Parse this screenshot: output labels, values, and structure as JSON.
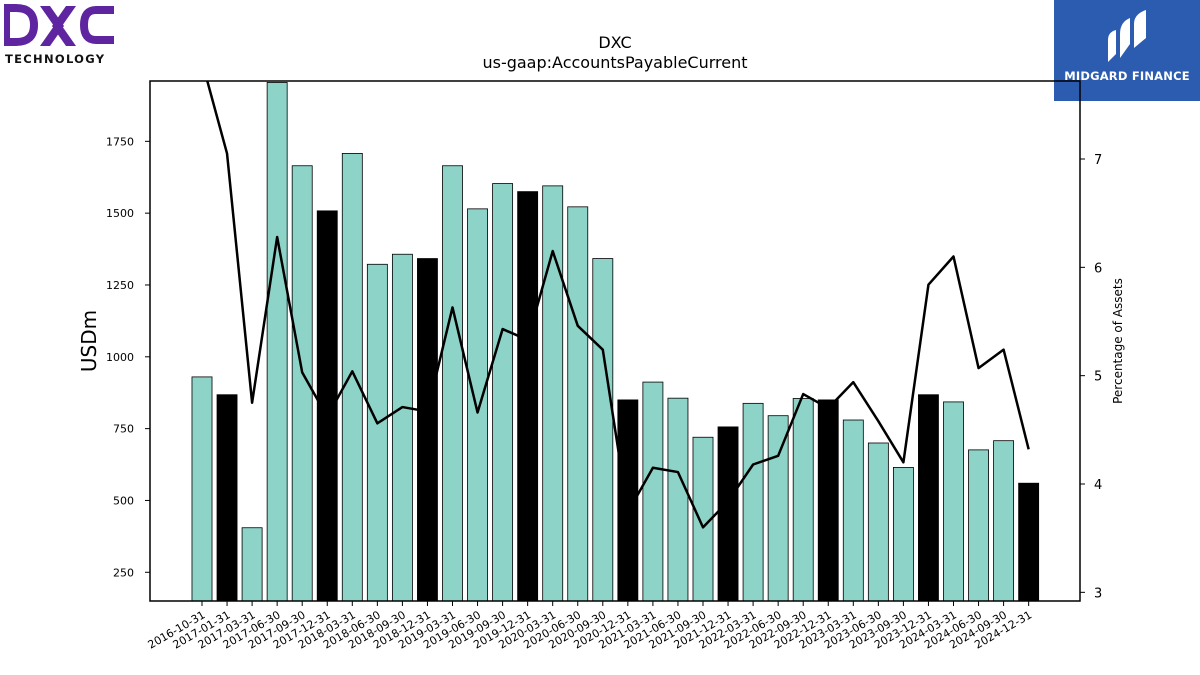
{
  "branding": {
    "company_logo_text": "DXC",
    "company_logo_subtext": "TECHNOLOGY",
    "publisher_logo_text": "MIDGARD FINANCE",
    "colors": {
      "dxc_purple": "#5f249f",
      "midgard_blue": "#2c5cb0"
    }
  },
  "chart_data": {
    "type": "bar",
    "title": "DXC",
    "subtitle": "us-gaap:AccountsPayableCurrent",
    "ylabel": "USDm",
    "y2label": "Percentage of Assets",
    "ylim": [
      150,
      1960
    ],
    "y2lim": [
      2.92,
      7.72
    ],
    "yticks": [
      250,
      500,
      750,
      1000,
      1250,
      1500,
      1750
    ],
    "y2ticks": [
      3,
      4,
      5,
      6,
      7
    ],
    "grid": false,
    "categories": [
      "2016-10-31",
      "2017-01-31",
      "2017-03-31",
      "2017-06-30",
      "2017-09-30",
      "2017-12-31",
      "2018-03-31",
      "2018-06-30",
      "2018-09-30",
      "2018-12-31",
      "2019-03-31",
      "2019-06-30",
      "2019-09-30",
      "2019-12-31",
      "2020-03-31",
      "2020-06-30",
      "2020-09-30",
      "2020-12-31",
      "2021-03-31",
      "2021-06-30",
      "2021-09-30",
      "2021-12-31",
      "2022-03-31",
      "2022-06-30",
      "2022-09-30",
      "2022-12-31",
      "2023-03-31",
      "2023-06-30",
      "2023-09-30",
      "2023-12-31",
      "2024-03-31",
      "2024-06-30",
      "2024-09-30",
      "2024-12-31"
    ],
    "series": [
      {
        "type": "bar",
        "values": [
          930,
          868,
          405,
          1955,
          1665,
          1508,
          1708,
          1322,
          1357,
          1342,
          1665,
          1515,
          1603,
          1575,
          1595,
          1522,
          1342,
          850,
          912,
          856,
          720,
          756,
          838,
          795,
          855,
          850,
          780,
          700,
          615,
          868,
          843,
          676,
          708,
          560
        ],
        "highlight": [
          false,
          true,
          false,
          false,
          false,
          true,
          false,
          false,
          false,
          true,
          false,
          false,
          false,
          true,
          false,
          false,
          false,
          true,
          false,
          false,
          false,
          true,
          false,
          false,
          false,
          true,
          false,
          false,
          false,
          true,
          false,
          false,
          false,
          true
        ],
        "colors": {
          "normal": "#8dd3c7",
          "highlight": "#000000"
        }
      },
      {
        "type": "line",
        "axis": "right",
        "values": [
          7.9,
          7.05,
          4.75,
          6.28,
          5.03,
          4.62,
          5.04,
          4.56,
          4.71,
          4.67,
          5.63,
          4.66,
          5.43,
          5.33,
          6.15,
          5.46,
          5.24,
          3.74,
          4.15,
          4.11,
          3.6,
          3.84,
          4.18,
          4.26,
          4.83,
          4.7,
          4.94,
          4.58,
          4.2,
          5.84,
          6.1,
          5.07,
          5.24,
          4.32
        ],
        "color": "#000000"
      }
    ]
  }
}
